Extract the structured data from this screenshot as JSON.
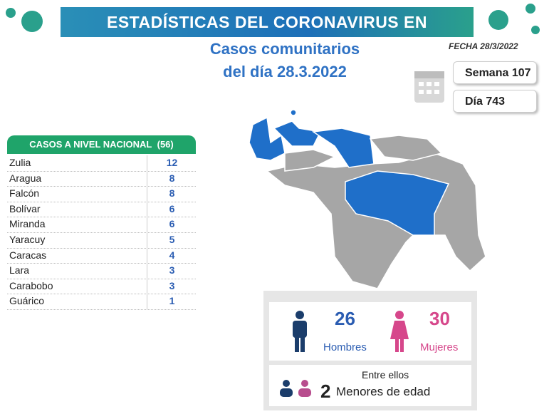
{
  "header": {
    "title": "ESTADÍSTICAS DEL CORONAVIRUS EN VENEZUELA"
  },
  "subtitle": [
    "Casos comunitarios",
    "del día 28.3.2022"
  ],
  "date": "FECHA 28/3/2022",
  "week": "Semana 107",
  "day": "Día 743",
  "table": {
    "title": "CASOS A NIVEL NACIONAL",
    "total": "(56)",
    "rows": [
      [
        "Zulia",
        "12"
      ],
      [
        "Aragua",
        "8"
      ],
      [
        "Falcón",
        "8"
      ],
      [
        "Bolívar",
        "6"
      ],
      [
        "Miranda",
        "6"
      ],
      [
        "Yaracuy",
        "5"
      ],
      [
        "Caracas",
        "4"
      ],
      [
        "Lara",
        "3"
      ],
      [
        "Carabobo",
        "3"
      ],
      [
        "Guárico",
        "1"
      ]
    ]
  },
  "gender": {
    "men": {
      "count": "26",
      "label": "Hombres"
    },
    "women": {
      "count": "30",
      "label": "Mujeres"
    }
  },
  "minors": {
    "intro": "Entre ellos",
    "count": "2",
    "label": "Menores de edad"
  }
}
